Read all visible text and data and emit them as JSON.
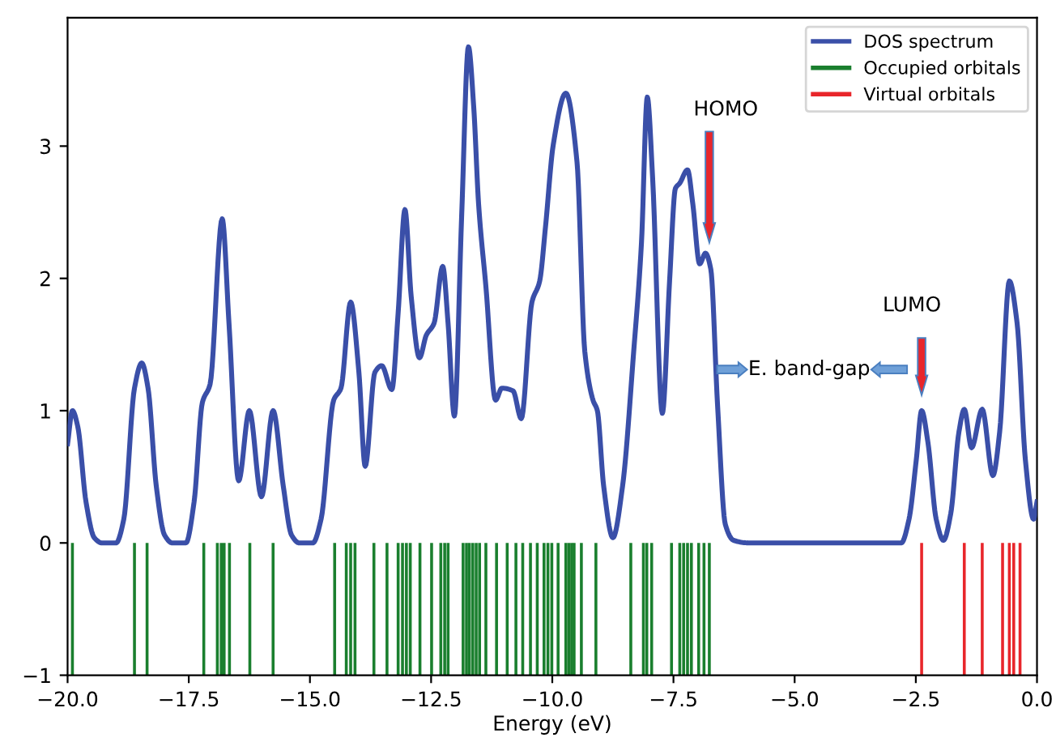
{
  "chart_data": {
    "type": "line",
    "xlabel": "Energy (eV)",
    "xlim": [
      -20,
      0
    ],
    "ylim": [
      -1,
      3.97
    ],
    "xticks": [
      {
        "value": -20,
        "label": "−20.0"
      },
      {
        "value": -17.5,
        "label": "−17.5"
      },
      {
        "value": -15,
        "label": "−15.0"
      },
      {
        "value": -12.5,
        "label": "−12.5"
      },
      {
        "value": -10,
        "label": "−10.0"
      },
      {
        "value": -7.5,
        "label": "−7.5"
      },
      {
        "value": -5,
        "label": "−5.0"
      },
      {
        "value": -2.5,
        "label": "−2.5"
      },
      {
        "value": 0,
        "label": "0.0"
      }
    ],
    "yticks": [
      {
        "value": -1,
        "label": "−1"
      },
      0,
      1,
      2,
      3
    ],
    "grid": false,
    "legend": "top right",
    "series": [
      {
        "name": "DOS spectrum",
        "color": "#3a4fa8",
        "x": [
          -20,
          -19.9,
          -19.79,
          -19.62,
          -19.45,
          -19.29,
          -19.0,
          -18.84,
          -18.62,
          -18.47,
          -18.34,
          -18.17,
          -18.0,
          -17.84,
          -17.56,
          -17.39,
          -17.22,
          -17.06,
          -16.81,
          -16.67,
          -16.47,
          -16.25,
          -16.0,
          -15.76,
          -15.55,
          -15.38,
          -15.22,
          -14.94,
          -14.77,
          -14.51,
          -14.36,
          -14.16,
          -13.99,
          -13.86,
          -13.66,
          -13.52,
          -13.31,
          -13.18,
          -13.04,
          -12.91,
          -12.74,
          -12.6,
          -12.44,
          -12.26,
          -12.15,
          -12.02,
          -11.87,
          -11.73,
          -11.62,
          -11.52,
          -11.37,
          -11.17,
          -11.04,
          -10.81,
          -10.64,
          -10.42,
          -10.26,
          -10.14,
          -9.98,
          -9.72,
          -9.49,
          -9.33,
          -9.16,
          -9.07,
          -8.94,
          -8.75,
          -8.55,
          -8.32,
          -8.16,
          -8.04,
          -7.93,
          -7.73,
          -7.58,
          -7.46,
          -7.37,
          -7.21,
          -7.1,
          -6.96,
          -6.84,
          -6.73,
          -6.59,
          -6.43,
          -6.26,
          -5.93,
          -3.7,
          -2.8,
          -2.64,
          -2.49,
          -2.38,
          -2.25,
          -2.08,
          -1.93,
          -1.78,
          -1.61,
          -1.5,
          -1.35,
          -1.13,
          -0.91,
          -0.77,
          -0.57,
          -0.41,
          -0.24,
          -0.07,
          0
        ],
        "values": [
          0.75,
          1.0,
          0.88,
          0.31,
          0.04,
          0,
          0,
          0.18,
          1.17,
          1.36,
          1.17,
          0.43,
          0.06,
          0,
          0,
          0.31,
          1.06,
          1.2,
          2.45,
          1.66,
          0.47,
          1.0,
          0.35,
          1.0,
          0.43,
          0.06,
          0,
          0,
          0.18,
          1.08,
          1.17,
          1.82,
          1.29,
          0.58,
          1.29,
          1.34,
          1.16,
          1.74,
          2.52,
          1.86,
          1.4,
          1.57,
          1.66,
          2.09,
          1.66,
          0.96,
          2.47,
          3.75,
          3.29,
          2.56,
          1.94,
          1.08,
          1.17,
          1.15,
          0.94,
          1.82,
          1.98,
          2.39,
          3.01,
          3.4,
          2.88,
          1.45,
          1.08,
          1.0,
          0.43,
          0.04,
          0.43,
          1.45,
          2.27,
          3.37,
          2.76,
          0.98,
          1.98,
          2.68,
          2.72,
          2.82,
          2.56,
          2.11,
          2.19,
          2.07,
          1.04,
          0.14,
          0.02,
          0,
          0,
          0,
          0.18,
          0.63,
          1.0,
          0.76,
          0.18,
          0.02,
          0.22,
          0.84,
          1.01,
          0.72,
          1.01,
          0.51,
          0.84,
          1.98,
          1.66,
          0.63,
          0.18,
          0.31
        ]
      },
      {
        "name": "Occupied orbitals",
        "type": "bar",
        "color": "#1a7f2e",
        "x": [
          -19.9,
          -18.62,
          -18.36,
          -17.19,
          -16.91,
          -16.83,
          -16.77,
          -16.66,
          -16.24,
          -15.76,
          -14.49,
          -14.25,
          -14.16,
          -14.07,
          -13.68,
          -13.41,
          -13.18,
          -13.09,
          -13.01,
          -12.93,
          -12.73,
          -12.49,
          -12.3,
          -12.22,
          -12.15,
          -11.84,
          -11.77,
          -11.71,
          -11.64,
          -11.57,
          -11.5,
          -11.37,
          -11.15,
          -10.93,
          -10.75,
          -10.61,
          -10.45,
          -10.31,
          -10.17,
          -10.09,
          -10.01,
          -9.88,
          -9.72,
          -9.66,
          -9.6,
          -9.55,
          -9.4,
          -9.1,
          -8.38,
          -8.12,
          -8.05,
          -7.95,
          -7.54,
          -7.37,
          -7.29,
          -7.21,
          -7.13,
          -6.98,
          -6.87,
          -6.76
        ],
        "values": [
          1,
          1,
          1,
          1,
          1,
          1,
          1,
          1,
          1,
          1,
          1,
          1,
          1,
          1,
          1,
          1,
          1,
          1,
          1,
          1,
          1,
          1,
          1,
          1,
          1,
          1,
          1,
          1,
          1,
          1,
          1,
          1,
          1,
          1,
          1,
          1,
          1,
          1,
          1,
          1,
          1,
          1,
          1,
          1,
          1,
          1,
          1,
          1,
          1,
          1,
          1,
          1,
          1,
          1,
          1,
          1,
          1,
          1,
          1,
          1
        ],
        "base": [
          -1,
          -1,
          -1,
          -1,
          -1,
          -1,
          -1,
          -1,
          -1,
          -1,
          -1,
          -1,
          -1,
          -1,
          -1,
          -1,
          -1,
          -1,
          -1,
          -1,
          -1,
          -1,
          -1,
          -1,
          -1,
          -1,
          -1,
          -1,
          -1,
          -1,
          -1,
          -1,
          -1,
          -1,
          -1,
          -1,
          -1,
          -1,
          -1,
          -1,
          -1,
          -1,
          -1,
          -1,
          -1,
          -1,
          -1,
          -1,
          -1,
          -1,
          -1,
          -1,
          -1,
          -1,
          -1,
          -1,
          -1,
          -1,
          -1,
          -1
        ]
      },
      {
        "name": "Virtual orbitals",
        "type": "bar",
        "color": "#e8262b",
        "x": [
          -2.38,
          -1.5,
          -1.13,
          -0.71,
          -0.57,
          -0.48,
          -0.35
        ],
        "values": [
          1,
          1,
          1,
          1,
          1,
          1,
          1
        ],
        "base": [
          -1,
          -1,
          -1,
          -1,
          -1,
          -1,
          -1
        ]
      }
    ],
    "annotations": [
      "HOMO",
      "LUMO",
      "E. band-gap"
    ]
  }
}
